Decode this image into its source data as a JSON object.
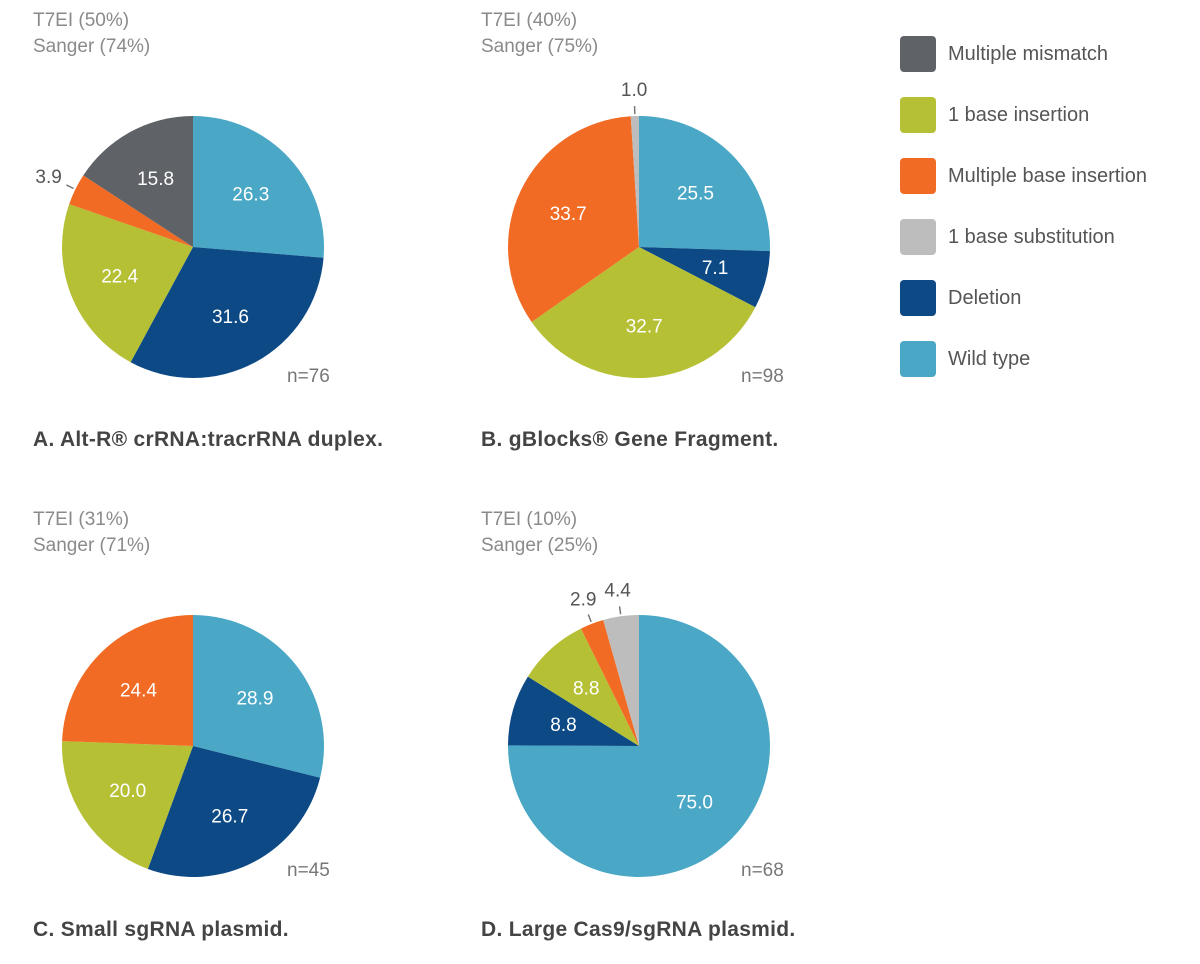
{
  "legend": [
    {
      "name": "Multiple mismatch",
      "color": "#5f6368"
    },
    {
      "name": "1 base insertion",
      "color": "#b5c035"
    },
    {
      "name": "Multiple base insertion",
      "color": "#f26b24"
    },
    {
      "name": "1 base substitution",
      "color": "#bdbdbd"
    },
    {
      "name": "Deletion",
      "color": "#0d4a85"
    },
    {
      "name": "Wild type",
      "color": "#4aa8c6"
    }
  ],
  "chart_data": [
    {
      "type": "pie",
      "title": "A. Alt-R® crRNA:tracrRNA duplex.",
      "t7ei": "T7EI (50%)",
      "sanger": "Sanger (74%)",
      "n": "n=76",
      "slices": [
        {
          "label": "Wild type",
          "value": 26.3
        },
        {
          "label": "Deletion",
          "value": 31.6
        },
        {
          "label": "1 base insertion",
          "value": 22.4
        },
        {
          "label": "Multiple base insertion",
          "value": 3.9
        },
        {
          "label": "Multiple mismatch",
          "value": 15.8
        }
      ]
    },
    {
      "type": "pie",
      "title": "B. gBlocks® Gene Fragment.",
      "t7ei": "T7EI (40%)",
      "sanger": "Sanger (75%)",
      "n": "n=98",
      "slices": [
        {
          "label": "Wild type",
          "value": 25.5
        },
        {
          "label": "Deletion",
          "value": 7.1
        },
        {
          "label": "1 base insertion",
          "value": 32.7
        },
        {
          "label": "Multiple base insertion",
          "value": 33.7
        },
        {
          "label": "1 base substitution",
          "value": 1.0
        }
      ]
    },
    {
      "type": "pie",
      "title": "C. Small sgRNA plasmid.",
      "t7ei": "T7EI (31%)",
      "sanger": "Sanger (71%)",
      "n": "n=45",
      "slices": [
        {
          "label": "Wild type",
          "value": 28.9
        },
        {
          "label": "Deletion",
          "value": 26.7
        },
        {
          "label": "1 base insertion",
          "value": 20.0
        },
        {
          "label": "Multiple base insertion",
          "value": 24.4
        }
      ]
    },
    {
      "type": "pie",
      "title": "D. Large Cas9/sgRNA plasmid.",
      "t7ei": "T7EI (10%)",
      "sanger": "Sanger (25%)",
      "n": "n=68",
      "slices": [
        {
          "label": "Wild type",
          "value": 75.0
        },
        {
          "label": "Deletion",
          "value": 8.8
        },
        {
          "label": "1 base insertion",
          "value": 8.8
        },
        {
          "label": "Multiple base insertion",
          "value": 2.9
        },
        {
          "label": "1 base substitution",
          "value": 4.4
        }
      ]
    }
  ]
}
